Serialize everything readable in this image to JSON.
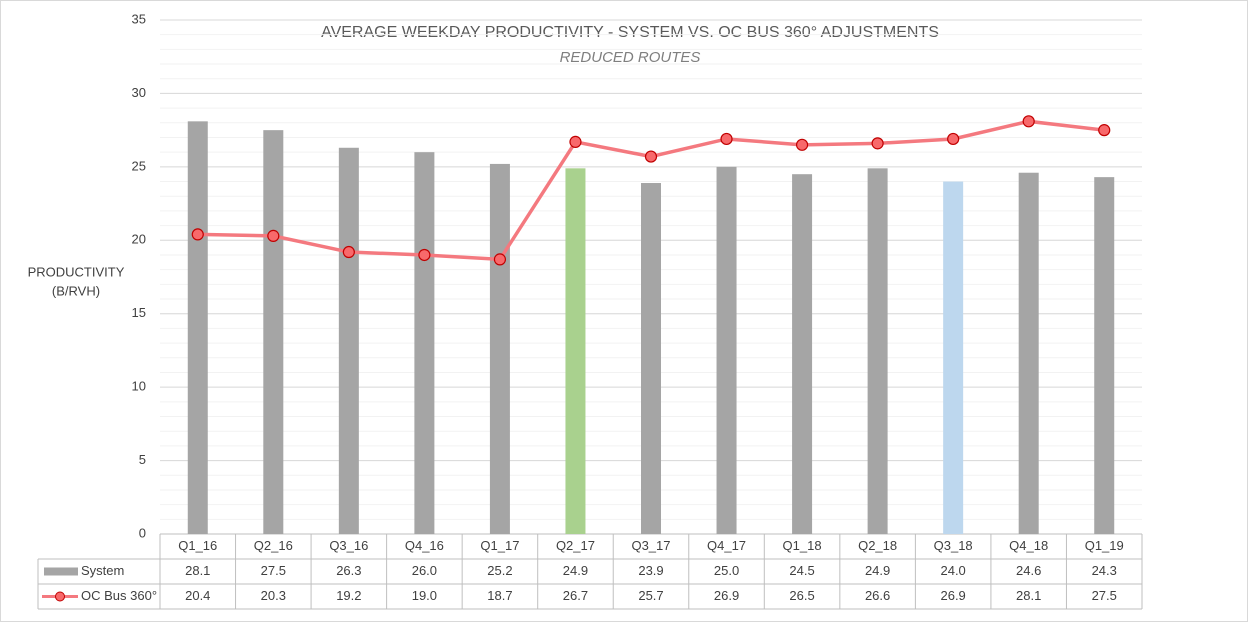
{
  "chart_data": {
    "type": "bar_line",
    "title": "AVERAGE WEEKDAY PRODUCTIVITY  - SYSTEM VS. OC BUS 360° ADJUSTMENTS",
    "subtitle": "REDUCED ROUTES",
    "y_label": [
      "PRODUCTIVITY",
      "(B/RVH)"
    ],
    "categories": [
      "Q1_16",
      "Q2_16",
      "Q3_16",
      "Q4_16",
      "Q1_17",
      "Q2_17",
      "Q3_17",
      "Q4_17",
      "Q1_18",
      "Q2_18",
      "Q3_18",
      "Q4_18",
      "Q1_19"
    ],
    "series": [
      {
        "name": "System",
        "type": "bar",
        "color": "#a5a5a5",
        "colors": [
          "#a5a5a5",
          "#a5a5a5",
          "#a5a5a5",
          "#a5a5a5",
          "#a5a5a5",
          "#a9d18e",
          "#a5a5a5",
          "#a5a5a5",
          "#a5a5a5",
          "#a5a5a5",
          "#bdd7ee",
          "#a5a5a5",
          "#a5a5a5"
        ],
        "values": [
          28.1,
          27.5,
          26.3,
          26,
          25.2,
          24.9,
          23.9,
          25,
          24.5,
          24.9,
          24,
          24.6,
          24.3
        ],
        "value_labels": [
          "28.1",
          "27.5",
          "26.3",
          "26.0",
          "25.2",
          "24.9",
          "23.9",
          "25.0",
          "24.5",
          "24.9",
          "24.0",
          "24.6",
          "24.3"
        ]
      },
      {
        "name": "OC Bus 360°",
        "type": "line",
        "color": "#f4797f",
        "marker_color": "#f8696b",
        "marker_edge": "#c00000",
        "values": [
          20.4,
          20.3,
          19.2,
          19,
          18.7,
          26.7,
          25.7,
          26.9,
          26.5,
          26.6,
          26.9,
          28.1,
          27.5
        ],
        "value_labels": [
          "20.4",
          "20.3",
          "19.2",
          "19.0",
          "18.7",
          "26.7",
          "25.7",
          "26.9",
          "26.5",
          "26.6",
          "26.9",
          "28.1",
          "27.5"
        ]
      }
    ],
    "ylim": [
      0,
      35
    ],
    "yticks": [
      0,
      5,
      10,
      15,
      20,
      25,
      30,
      35
    ],
    "grid": true,
    "minor_step": 1
  }
}
